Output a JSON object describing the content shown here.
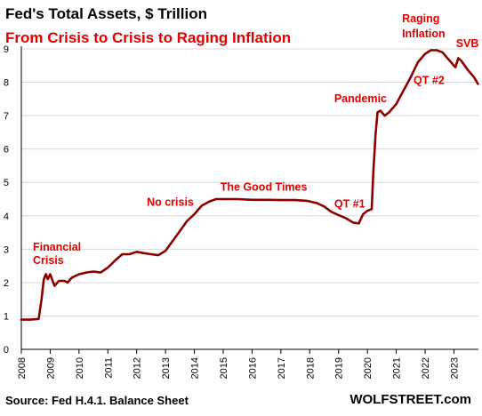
{
  "header": {
    "title": "Fed's Total Assets, $ Trillion",
    "subtitle": "From Crisis to Crisis to Raging Inflation"
  },
  "footer": {
    "source": "Source: Fed H.4.1. Balance Sheet",
    "brand": "WOLFSTREET.com"
  },
  "colors": {
    "line": "#8b0000",
    "annotation": "#e00000",
    "gridline": "#d9d9d9",
    "axis": "#000000"
  },
  "chart_data": {
    "type": "line",
    "title": "Fed's Total Assets, $ Trillion",
    "subtitle": "From Crisis to Crisis to Raging Inflation",
    "xlabel": "",
    "ylabel": "",
    "xlim": [
      2008,
      2023.85
    ],
    "ylim": [
      0,
      9
    ],
    "x_ticks": [
      "2008",
      "2009",
      "2010",
      "2011",
      "2012",
      "2013",
      "2014",
      "2015",
      "2016",
      "2017",
      "2018",
      "2019",
      "2020",
      "2021",
      "2022",
      "2023"
    ],
    "y_ticks": [
      "0",
      "1",
      "2",
      "3",
      "4",
      "5",
      "6",
      "7",
      "8",
      "9"
    ],
    "grid": "horizontal",
    "series": [
      {
        "name": "",
        "points": [
          [
            2008.0,
            0.89
          ],
          [
            2008.3,
            0.89
          ],
          [
            2008.6,
            0.91
          ],
          [
            2008.7,
            1.5
          ],
          [
            2008.78,
            2.1
          ],
          [
            2008.85,
            2.25
          ],
          [
            2008.92,
            2.1
          ],
          [
            2009.0,
            2.25
          ],
          [
            2009.15,
            1.9
          ],
          [
            2009.3,
            2.05
          ],
          [
            2009.5,
            2.05
          ],
          [
            2009.6,
            2.0
          ],
          [
            2009.75,
            2.15
          ],
          [
            2010.0,
            2.25
          ],
          [
            2010.25,
            2.3
          ],
          [
            2010.5,
            2.33
          ],
          [
            2010.75,
            2.3
          ],
          [
            2011.0,
            2.45
          ],
          [
            2011.3,
            2.7
          ],
          [
            2011.5,
            2.85
          ],
          [
            2011.75,
            2.85
          ],
          [
            2012.0,
            2.92
          ],
          [
            2012.25,
            2.88
          ],
          [
            2012.5,
            2.85
          ],
          [
            2012.75,
            2.82
          ],
          [
            2013.0,
            2.95
          ],
          [
            2013.25,
            3.25
          ],
          [
            2013.5,
            3.55
          ],
          [
            2013.75,
            3.85
          ],
          [
            2014.0,
            4.05
          ],
          [
            2014.25,
            4.3
          ],
          [
            2014.5,
            4.42
          ],
          [
            2014.75,
            4.5
          ],
          [
            2015.0,
            4.5
          ],
          [
            2015.5,
            4.5
          ],
          [
            2016.0,
            4.48
          ],
          [
            2016.5,
            4.48
          ],
          [
            2017.0,
            4.47
          ],
          [
            2017.5,
            4.47
          ],
          [
            2017.9,
            4.45
          ],
          [
            2018.25,
            4.38
          ],
          [
            2018.5,
            4.28
          ],
          [
            2018.75,
            4.12
          ],
          [
            2019.0,
            4.02
          ],
          [
            2019.25,
            3.93
          ],
          [
            2019.5,
            3.8
          ],
          [
            2019.7,
            3.77
          ],
          [
            2019.85,
            4.05
          ],
          [
            2020.0,
            4.15
          ],
          [
            2020.15,
            4.2
          ],
          [
            2020.2,
            5.2
          ],
          [
            2020.28,
            6.4
          ],
          [
            2020.35,
            7.1
          ],
          [
            2020.45,
            7.15
          ],
          [
            2020.6,
            7.0
          ],
          [
            2020.75,
            7.1
          ],
          [
            2021.0,
            7.35
          ],
          [
            2021.25,
            7.75
          ],
          [
            2021.5,
            8.15
          ],
          [
            2021.75,
            8.6
          ],
          [
            2022.0,
            8.85
          ],
          [
            2022.2,
            8.96
          ],
          [
            2022.4,
            8.96
          ],
          [
            2022.6,
            8.9
          ],
          [
            2022.8,
            8.7
          ],
          [
            2023.05,
            8.45
          ],
          [
            2023.15,
            8.72
          ],
          [
            2023.25,
            8.65
          ],
          [
            2023.5,
            8.35
          ],
          [
            2023.7,
            8.15
          ],
          [
            2023.83,
            7.95
          ]
        ]
      }
    ],
    "annotations": [
      {
        "text": "Financial",
        "x": 2008.4,
        "y": 2.95
      },
      {
        "text": "Crisis",
        "x": 2008.4,
        "y": 2.55
      },
      {
        "text": "No crisis",
        "x": 2012.35,
        "y": 4.3
      },
      {
        "text": "The Good Times",
        "x": 2014.9,
        "y": 4.75
      },
      {
        "text": "QT #1",
        "x": 2018.85,
        "y": 4.25
      },
      {
        "text": "Pandemic",
        "x": 2018.85,
        "y": 7.4
      },
      {
        "text": "Raging",
        "x": 2021.2,
        "y": 9.8
      },
      {
        "text": "Inflation",
        "x": 2021.2,
        "y": 9.35
      },
      {
        "text": "SVB",
        "x": 2023.07,
        "y": 9.05
      },
      {
        "text": "QT #2",
        "x": 2021.6,
        "y": 7.95
      }
    ]
  }
}
